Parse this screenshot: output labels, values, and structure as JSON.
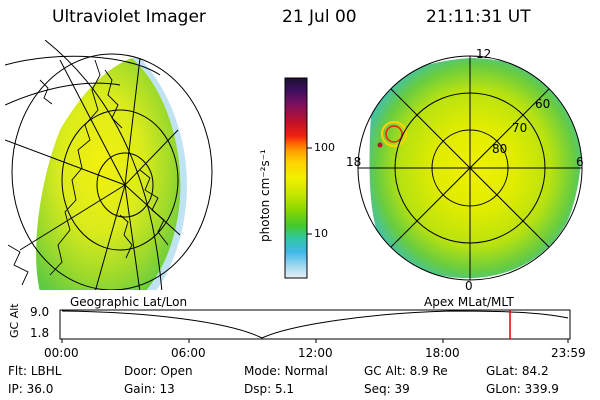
{
  "header": {
    "title": "Ultraviolet Imager",
    "date": "21 Jul 00",
    "time": "21:11:31 UT"
  },
  "left_panel": {
    "caption": "Geographic Lat/Lon"
  },
  "colorbar": {
    "unit_label": "photon cm⁻²s⁻¹",
    "tick_100": "100",
    "tick_10": "10",
    "colors": [
      "#1a1030",
      "#3b0f5e",
      "#7a1060",
      "#c0102a",
      "#f02010",
      "#ff6a00",
      "#ffa500",
      "#ffd200",
      "#f2f000",
      "#c8e600",
      "#88d800",
      "#42c830",
      "#30c8a0",
      "#40b8e8",
      "#a0d8f0",
      "#e8f2f8"
    ]
  },
  "right_panel": {
    "caption": "Apex MLat/MLT",
    "mlt_12": "12",
    "mlt_18": "18",
    "mlt_6": "6",
    "mlt_0": "0",
    "lat_60": "60",
    "lat_70": "70",
    "lat_80": "80"
  },
  "altitude_plot": {
    "ylabel": "GC Alt",
    "y_top": "9.0",
    "y_bottom": "1.8",
    "x_ticks": [
      "00:00",
      "06:00",
      "12:00",
      "18:00",
      "23:59"
    ]
  },
  "info": {
    "flt_label": "Flt: ",
    "flt_value": "LBHL",
    "ip_label": "IP: ",
    "ip_value": "36.0",
    "door_label": "Door: ",
    "door_value": "Open",
    "gain_label": "Gain: ",
    "gain_value": "13",
    "mode_label": "Mode: ",
    "mode_value": "Normal",
    "dsp_label": "Dsp: ",
    "dsp_value": "5.1",
    "gcalt_label": "GC Alt: ",
    "gcalt_value": "8.9 Re",
    "seq_label": "Seq: ",
    "seq_value": "39",
    "glat_label": "GLat: ",
    "glat_value": "84.2",
    "glon_label": "GLon: ",
    "glon_value": "339.9"
  }
}
